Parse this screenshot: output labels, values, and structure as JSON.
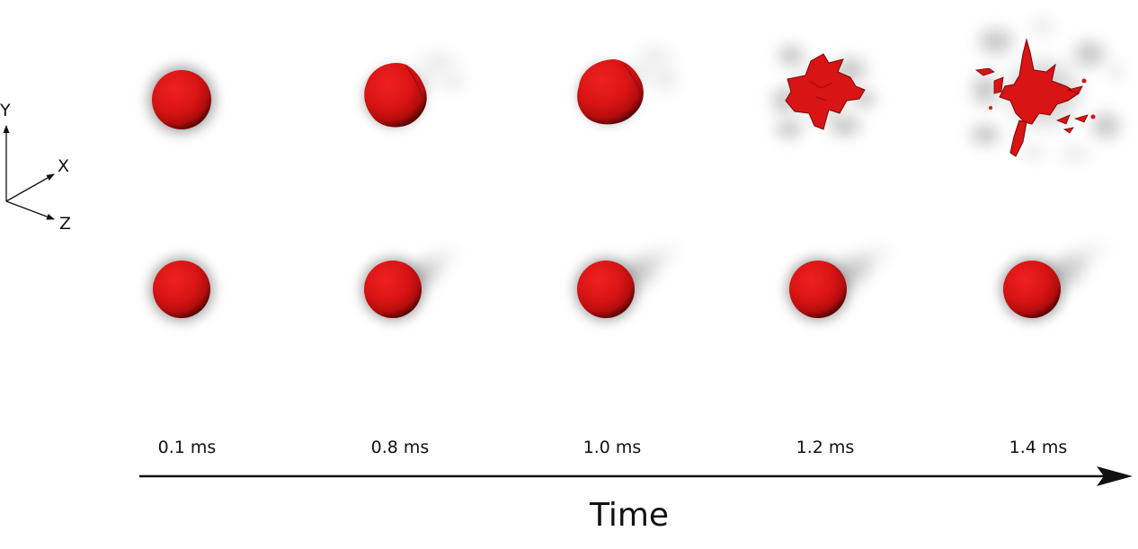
{
  "axes_legend": {
    "y": "Y",
    "x": "X",
    "z": "Z"
  },
  "time_labels": [
    "0.1 ms",
    "0.8 ms",
    "1.0 ms",
    "1.2 ms",
    "1.4 ms"
  ],
  "time_axis_title": "Time",
  "droplet_color": "#d61414",
  "shadow_color": "#6f6f6f",
  "rows": [
    {
      "row": "top",
      "states": [
        "sphere",
        "deforming",
        "deforming",
        "breakup",
        "fragmented"
      ]
    },
    {
      "row": "bottom",
      "states": [
        "sphere",
        "sphere",
        "sphere",
        "sphere",
        "sphere"
      ]
    }
  ]
}
